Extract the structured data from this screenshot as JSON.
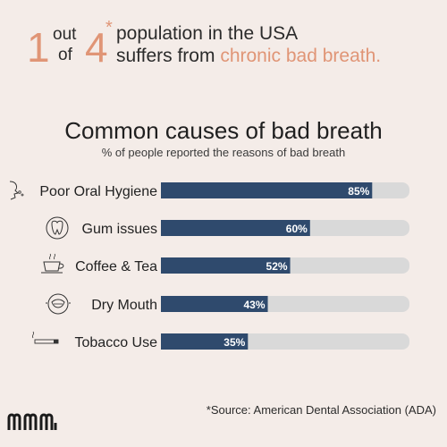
{
  "headline": {
    "number_one": "1",
    "word_out": "out",
    "word_of": "of",
    "number_four": "4",
    "asterisk": "*",
    "line1": "population in the USA",
    "line2_prefix": "suffers from ",
    "line2_highlight": "chronic bad breath.",
    "accent_color": "#e09576"
  },
  "chart_data": {
    "type": "bar",
    "orientation": "horizontal",
    "title": "Common causes of bad breath",
    "subtitle": "% of people reported the reasons of bad breath",
    "categories": [
      "Poor Oral Hygiene",
      "Gum issues",
      "Coffee & Tea",
      "Dry Mouth",
      "Tobacco Use"
    ],
    "values": [
      85,
      60,
      52,
      43,
      35
    ],
    "value_labels": [
      "85%",
      "60%",
      "52%",
      "43%",
      "35%"
    ],
    "icons": [
      "face-profile-icon",
      "tooth-icon",
      "coffee-cup-icon",
      "dry-mouth-icon",
      "cigarette-icon"
    ],
    "xlim": [
      0,
      100
    ],
    "bar_color": "#2f4a6d",
    "track_color": "#d9d9d9"
  },
  "footer": {
    "source": "*Source: American Dental Association (ADA)"
  }
}
